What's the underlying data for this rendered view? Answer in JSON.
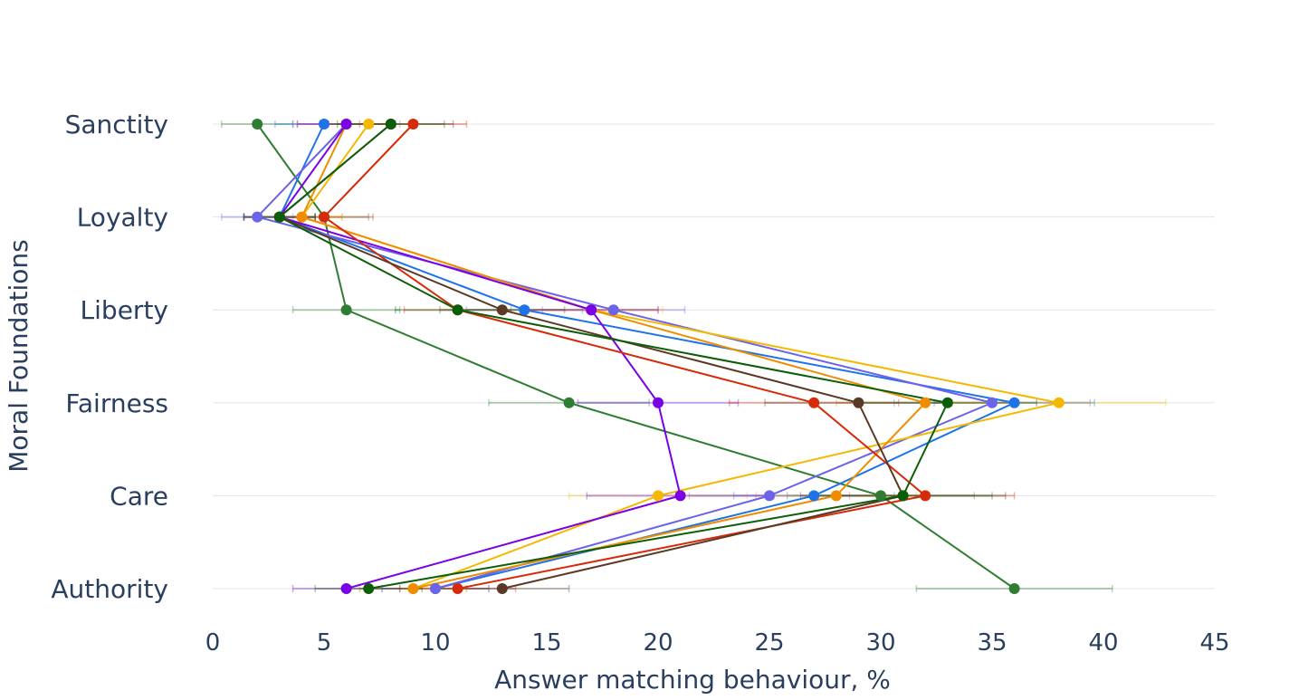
{
  "chart_data": {
    "type": "line",
    "orientation": "horizontal",
    "xlabel": "Answer matching behaviour, %",
    "ylabel": "Moral Foundations",
    "xlim": [
      0,
      45
    ],
    "x_ticks": [
      0,
      5,
      10,
      15,
      20,
      25,
      30,
      35,
      40,
      45
    ],
    "categories": [
      "Sanctity",
      "Loyalty",
      "Liberty",
      "Fairness",
      "Care",
      "Authority"
    ],
    "grid": true,
    "legend": "none",
    "series": [
      {
        "color": "#2e7d32",
        "values": [
          2,
          5,
          6,
          16,
          30,
          36
        ],
        "errors": [
          1.6,
          2.0,
          2.4,
          3.6,
          4.2,
          4.4
        ]
      },
      {
        "color": "#1e73e8",
        "values": [
          5,
          3,
          14,
          36,
          27,
          10
        ],
        "errors": [
          2.2,
          1.6,
          2.6,
          3.6,
          3.6,
          2.4
        ]
      },
      {
        "color": "#6b63e8",
        "values": [
          6,
          2,
          18,
          35,
          25,
          10
        ],
        "errors": [
          2.4,
          1.6,
          3.2,
          4.4,
          3.6,
          2.4
        ]
      },
      {
        "color": "#f5b800",
        "values": [
          7,
          4,
          17,
          38,
          20,
          9
        ],
        "errors": [
          2.2,
          1.8,
          3.2,
          4.8,
          4.0,
          2.4
        ]
      },
      {
        "color": "#f08c00",
        "values": [
          6,
          4,
          17,
          32,
          28,
          9
        ],
        "errors": [
          2.2,
          1.8,
          3.0,
          4.0,
          3.6,
          2.4
        ]
      },
      {
        "color": "#7a00e6",
        "values": [
          6,
          3,
          17,
          20,
          21,
          6
        ],
        "errors": [
          2.2,
          1.6,
          3.0,
          3.6,
          4.2,
          2.4
        ]
      },
      {
        "color": "#d62b0a",
        "values": [
          9,
          5,
          11,
          27,
          32,
          11
        ],
        "errors": [
          2.4,
          2.2,
          2.4,
          3.8,
          4.0,
          2.6
        ]
      },
      {
        "color": "#5a3a24",
        "values": [
          8,
          3,
          13,
          29,
          31,
          13
        ],
        "errors": [
          2.8,
          1.6,
          2.8,
          4.2,
          4.6,
          3.0
        ]
      },
      {
        "color": "#0b5e07",
        "values": [
          8,
          3,
          11,
          33,
          31,
          7
        ],
        "errors": [
          2.4,
          1.6,
          2.8,
          4.0,
          4.0,
          2.4
        ]
      }
    ]
  }
}
